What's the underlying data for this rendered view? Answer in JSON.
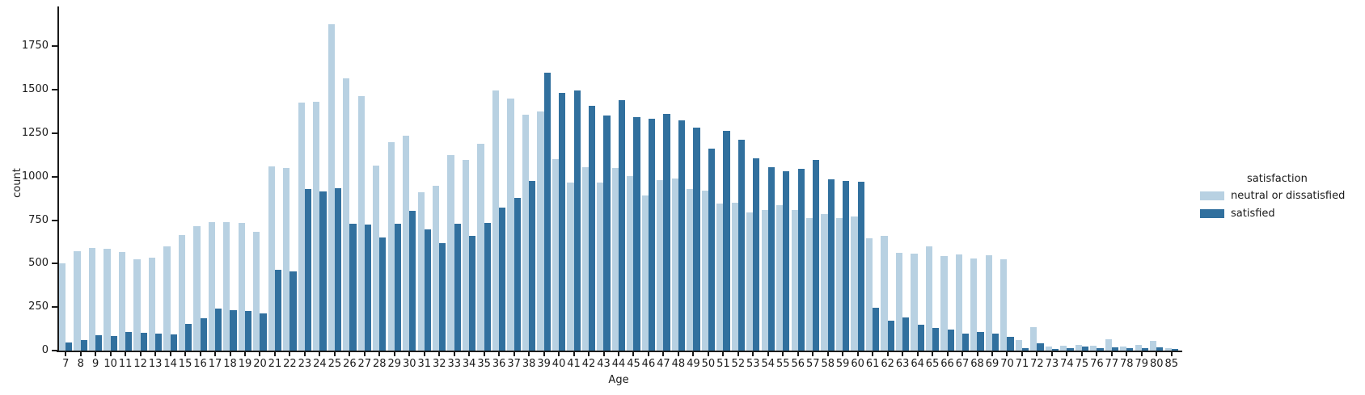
{
  "chart_data": {
    "type": "bar",
    "title": "",
    "xlabel": "Age",
    "ylabel": "count",
    "grid": false,
    "ylim": [
      0,
      1900
    ],
    "yticks": [
      0,
      250,
      500,
      750,
      1000,
      1250,
      1500,
      1750
    ],
    "legend": {
      "title": "satisfaction",
      "position": "right"
    },
    "categories": [
      7,
      8,
      9,
      10,
      11,
      12,
      13,
      14,
      15,
      16,
      17,
      18,
      19,
      20,
      21,
      22,
      23,
      24,
      25,
      26,
      27,
      28,
      29,
      30,
      31,
      32,
      33,
      34,
      35,
      36,
      37,
      38,
      39,
      40,
      41,
      42,
      43,
      44,
      45,
      46,
      47,
      48,
      49,
      50,
      51,
      52,
      53,
      54,
      55,
      56,
      57,
      58,
      59,
      60,
      61,
      62,
      63,
      64,
      65,
      66,
      67,
      68,
      69,
      70,
      71,
      72,
      73,
      74,
      75,
      76,
      77,
      78,
      79,
      80,
      85
    ],
    "series": [
      {
        "name": "neutral or dissatisfied",
        "color": "#b8d1e2",
        "values": [
          500,
          570,
          590,
          585,
          565,
          525,
          535,
          600,
          665,
          715,
          740,
          738,
          736,
          685,
          1058,
          1048,
          1428,
          1433,
          1879,
          1565,
          1465,
          1063,
          1201,
          1236,
          910,
          950,
          1125,
          1095,
          1190,
          1497,
          1448,
          1355,
          1376,
          1103,
          965,
          1053,
          965,
          1049,
          1004,
          891,
          979,
          988,
          931,
          919,
          848,
          852,
          795,
          810,
          836,
          809,
          760,
          787,
          762,
          771,
          646,
          661,
          561,
          558,
          598,
          545,
          553,
          530,
          550,
          523,
          62,
          136,
          21,
          26,
          31,
          26,
          65,
          21,
          31,
          54,
          15
        ]
      },
      {
        "name": "satisfied",
        "color": "#31709e",
        "values": [
          48,
          62,
          88,
          84,
          105,
          100,
          97,
          95,
          153,
          188,
          240,
          232,
          229,
          212,
          463,
          457,
          929,
          917,
          934,
          730,
          725,
          650,
          731,
          805,
          697,
          617,
          728,
          660,
          736,
          824,
          878,
          976,
          1597,
          1481,
          1498,
          1410,
          1352,
          1441,
          1345,
          1335,
          1363,
          1324,
          1283,
          1160,
          1263,
          1213,
          1108,
          1053,
          1033,
          1045,
          1097,
          984,
          976,
          971,
          248,
          174,
          189,
          147,
          132,
          119,
          96,
          108,
          96,
          81,
          14,
          43,
          8,
          15,
          22,
          15,
          18,
          12,
          15,
          18,
          8
        ]
      }
    ]
  }
}
